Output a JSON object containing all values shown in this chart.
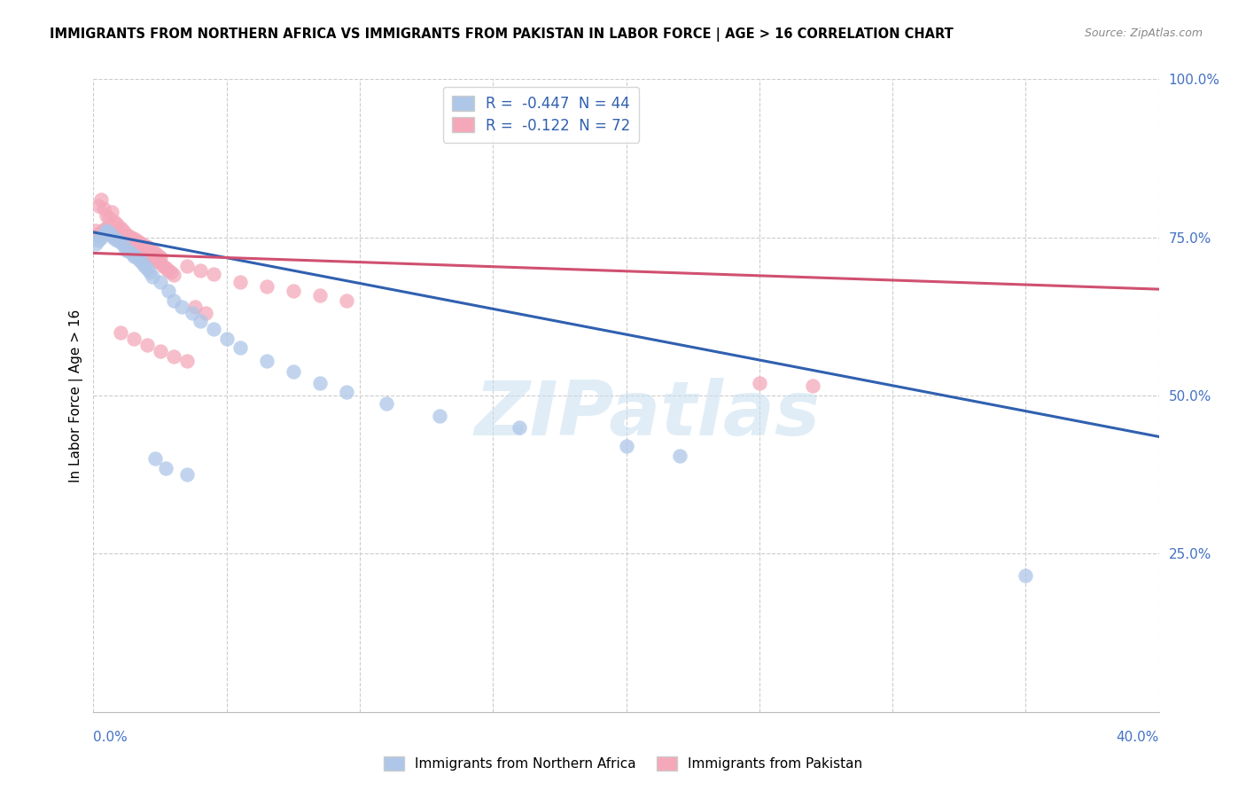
{
  "title": "IMMIGRANTS FROM NORTHERN AFRICA VS IMMIGRANTS FROM PAKISTAN IN LABOR FORCE | AGE > 16 CORRELATION CHART",
  "source": "Source: ZipAtlas.com",
  "ylabel": "In Labor Force | Age > 16",
  "y_ticks": [
    0.0,
    0.25,
    0.5,
    0.75,
    1.0
  ],
  "y_tick_labels": [
    "",
    "25.0%",
    "50.0%",
    "75.0%",
    "100.0%"
  ],
  "x_range": [
    0.0,
    0.4
  ],
  "y_range": [
    0.0,
    1.0
  ],
  "legend1_R": -0.447,
  "legend1_N": 44,
  "legend2_R": -0.122,
  "legend2_N": 72,
  "blue_color": "#aec6e8",
  "blue_edge_color": "#7aadd4",
  "blue_line_color": "#3060b0",
  "pink_color": "#f4a8ba",
  "pink_edge_color": "#e07090",
  "pink_line_color": "#d05070",
  "watermark": "ZIPatlas",
  "blue_line_x0": 0.0,
  "blue_line_y0": 0.758,
  "blue_line_x1": 0.4,
  "blue_line_y1": 0.435,
  "pink_line_x0": 0.0,
  "pink_line_y0": 0.725,
  "pink_line_x1": 0.4,
  "pink_line_y1": 0.668,
  "blue_scatter_x": [
    0.001,
    0.002,
    0.003,
    0.004,
    0.005,
    0.006,
    0.007,
    0.008,
    0.009,
    0.01,
    0.011,
    0.012,
    0.013,
    0.014,
    0.015,
    0.016,
    0.017,
    0.018,
    0.019,
    0.02,
    0.021,
    0.022,
    0.025,
    0.028,
    0.03,
    0.033,
    0.037,
    0.04,
    0.045,
    0.05,
    0.055,
    0.065,
    0.075,
    0.085,
    0.095,
    0.11,
    0.13,
    0.16,
    0.2,
    0.22,
    0.023,
    0.027,
    0.035,
    0.35
  ],
  "blue_scatter_y": [
    0.74,
    0.745,
    0.75,
    0.755,
    0.76,
    0.758,
    0.752,
    0.748,
    0.745,
    0.742,
    0.738,
    0.73,
    0.728,
    0.725,
    0.72,
    0.718,
    0.715,
    0.71,
    0.705,
    0.7,
    0.695,
    0.688,
    0.68,
    0.665,
    0.65,
    0.64,
    0.63,
    0.618,
    0.605,
    0.59,
    0.575,
    0.555,
    0.538,
    0.52,
    0.505,
    0.488,
    0.468,
    0.45,
    0.42,
    0.405,
    0.4,
    0.385,
    0.375,
    0.215
  ],
  "pink_scatter_x": [
    0.001,
    0.002,
    0.003,
    0.004,
    0.005,
    0.006,
    0.007,
    0.008,
    0.009,
    0.01,
    0.011,
    0.012,
    0.013,
    0.014,
    0.015,
    0.016,
    0.017,
    0.018,
    0.019,
    0.02,
    0.021,
    0.022,
    0.023,
    0.024,
    0.025,
    0.026,
    0.027,
    0.028,
    0.029,
    0.03,
    0.002,
    0.003,
    0.004,
    0.005,
    0.006,
    0.007,
    0.008,
    0.009,
    0.01,
    0.011,
    0.012,
    0.013,
    0.014,
    0.015,
    0.016,
    0.017,
    0.018,
    0.019,
    0.02,
    0.021,
    0.022,
    0.023,
    0.024,
    0.025,
    0.035,
    0.04,
    0.045,
    0.055,
    0.065,
    0.075,
    0.085,
    0.095,
    0.01,
    0.015,
    0.02,
    0.025,
    0.03,
    0.035,
    0.25,
    0.27,
    0.038,
    0.042
  ],
  "pink_scatter_y": [
    0.76,
    0.755,
    0.758,
    0.762,
    0.765,
    0.76,
    0.755,
    0.758,
    0.755,
    0.752,
    0.75,
    0.748,
    0.745,
    0.742,
    0.738,
    0.735,
    0.732,
    0.73,
    0.728,
    0.725,
    0.722,
    0.718,
    0.715,
    0.712,
    0.71,
    0.705,
    0.702,
    0.698,
    0.695,
    0.69,
    0.8,
    0.81,
    0.795,
    0.785,
    0.78,
    0.79,
    0.775,
    0.77,
    0.765,
    0.76,
    0.755,
    0.752,
    0.75,
    0.748,
    0.745,
    0.742,
    0.74,
    0.737,
    0.735,
    0.73,
    0.728,
    0.725,
    0.722,
    0.718,
    0.705,
    0.698,
    0.692,
    0.68,
    0.672,
    0.665,
    0.658,
    0.65,
    0.6,
    0.59,
    0.58,
    0.57,
    0.562,
    0.555,
    0.52,
    0.515,
    0.64,
    0.63
  ]
}
